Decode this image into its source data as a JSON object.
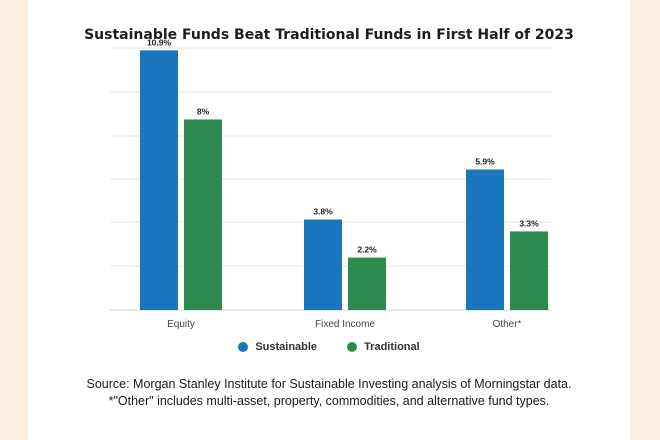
{
  "chart_data": {
    "type": "bar",
    "title": "Sustainable Funds Beat Traditional Funds in First Half of 2023",
    "categories": [
      "Equity",
      "Fixed Income",
      "Other*"
    ],
    "series": [
      {
        "name": "Sustainable",
        "values": [
          10.9,
          3.8,
          5.9
        ],
        "labels": [
          "10.9%",
          "3.8%",
          "5.9%"
        ],
        "color": "#1b77bd"
      },
      {
        "name": "Traditional",
        "values": [
          8,
          2.2,
          3.3
        ],
        "labels": [
          "8%",
          "2.2%",
          "3.3%"
        ],
        "color": "#2e8b4f"
      }
    ],
    "ylim": [
      0,
      11
    ],
    "grid": true,
    "legend_position": "bottom"
  },
  "footnote": {
    "source": "Source: Morgan Stanley Institute for Sustainable Investing analysis of Morningstar data.",
    "note": "*\"Other\" includes multi-asset, property, commodities, and alternative fund types."
  }
}
